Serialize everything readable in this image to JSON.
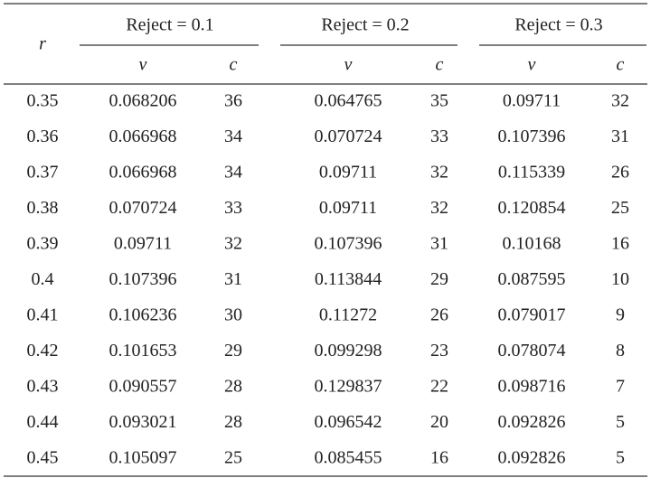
{
  "header": {
    "r": "r",
    "groups": [
      "Reject = 0.1",
      "Reject = 0.2",
      "Reject = 0.3"
    ],
    "subheaders": [
      "v",
      "c",
      "v",
      "c",
      "v",
      "c"
    ]
  },
  "table": {
    "rows": [
      [
        0.35,
        0.068206,
        36,
        0.064765,
        35,
        0.09711,
        32
      ],
      [
        0.36,
        0.066968,
        34,
        0.070724,
        33,
        0.107396,
        31
      ],
      [
        0.37,
        0.066968,
        34,
        0.09711,
        32,
        0.115339,
        26
      ],
      [
        0.38,
        0.070724,
        33,
        0.09711,
        32,
        0.120854,
        25
      ],
      [
        0.39,
        0.09711,
        32,
        0.107396,
        31,
        0.10168,
        16
      ],
      [
        0.4,
        0.107396,
        31,
        0.113844,
        29,
        0.087595,
        10
      ],
      [
        0.41,
        0.106236,
        30,
        0.11272,
        26,
        0.079017,
        9
      ],
      [
        0.42,
        0.101653,
        29,
        0.099298,
        23,
        0.078074,
        8
      ],
      [
        0.43,
        0.090557,
        28,
        0.129837,
        22,
        0.098716,
        7
      ],
      [
        0.44,
        0.093021,
        28,
        0.096542,
        20,
        0.092826,
        5
      ],
      [
        0.45,
        0.105097,
        25,
        0.085455,
        16,
        0.092826,
        5
      ]
    ]
  }
}
